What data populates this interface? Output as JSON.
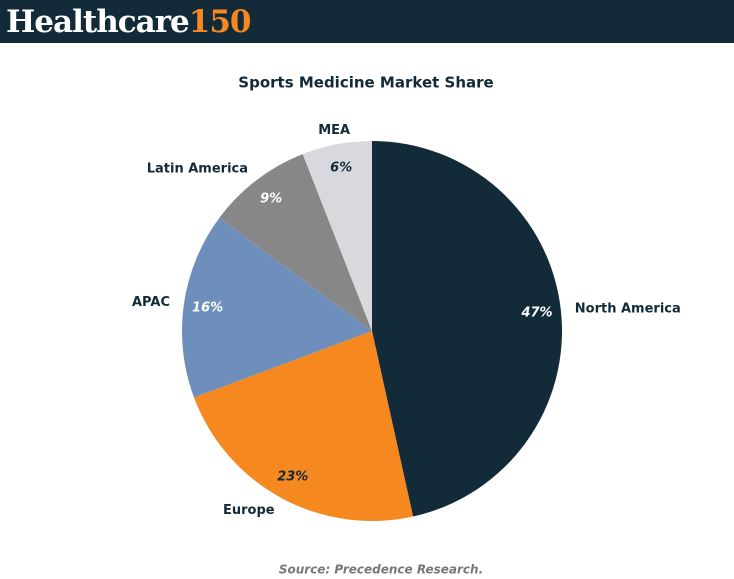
{
  "header": {
    "brand": "Healthcare",
    "number": "150"
  },
  "chart_data": {
    "type": "pie",
    "title": "Sports Medicine Market Share",
    "source": "Source: Precedence Research.",
    "categories": [
      "North America",
      "Europe",
      "APAC",
      "Latin America",
      "MEA"
    ],
    "values": [
      47,
      23,
      16,
      9,
      6
    ],
    "value_labels": [
      "47%",
      "23%",
      "16%",
      "9%",
      "6%"
    ],
    "colors": [
      "#132a38",
      "#f5891f",
      "#6e8fbb",
      "#878787",
      "#d9d9dd"
    ]
  }
}
